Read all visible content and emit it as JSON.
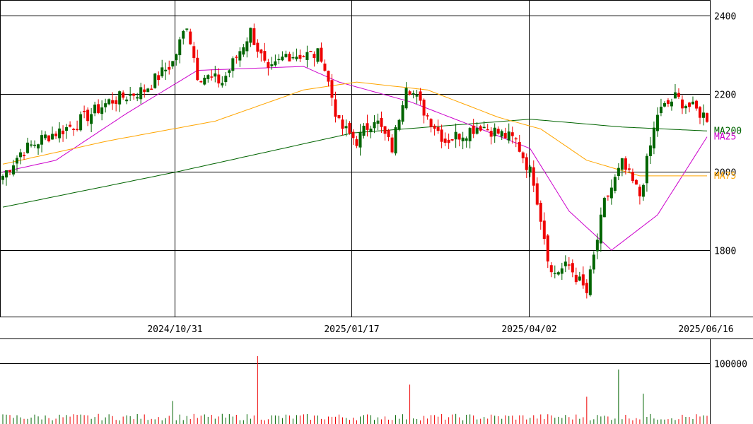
{
  "chart_data": [
    {
      "type": "candlestick",
      "title": "",
      "y_ticks": [
        1800,
        2000,
        2200,
        2400
      ],
      "y_tick_labels": [
        "1800",
        "2000",
        "2200",
        "2400"
      ],
      "ylim": [
        1630,
        2440
      ],
      "x_tick_labels": [
        "2024/10/31",
        "2025/01/17",
        "2025/04/02",
        "2025/06/16"
      ],
      "x_tick_index": [
        49,
        99,
        149,
        199
      ],
      "n_points": 200,
      "grid": true,
      "colors": {
        "up": "#006400",
        "down": "#ee0000",
        "ma25": "#cc00cc",
        "ma75": "#ffa500",
        "ma200": "#006400"
      },
      "series": [
        {
          "name": "MA200",
          "anchors": [
            [
              0,
              1910
            ],
            [
              49,
              2000
            ],
            [
              99,
              2100
            ],
            [
              149,
              2135
            ],
            [
              175,
              2115
            ],
            [
              199,
              2105
            ]
          ]
        },
        {
          "name": "MA25",
          "anchors": [
            [
              0,
              2000
            ],
            [
              15,
              2030
            ],
            [
              35,
              2150
            ],
            [
              55,
              2260
            ],
            [
              85,
              2270
            ],
            [
              95,
              2230
            ],
            [
              115,
              2180
            ],
            [
              135,
              2110
            ],
            [
              149,
              2060
            ],
            [
              160,
              1900
            ],
            [
              172,
              1800
            ],
            [
              185,
              1890
            ],
            [
              199,
              2090
            ]
          ]
        },
        {
          "name": "MA75",
          "anchors": [
            [
              0,
              2020
            ],
            [
              30,
              2080
            ],
            [
              60,
              2130
            ],
            [
              85,
              2210
            ],
            [
              100,
              2230
            ],
            [
              120,
              2210
            ],
            [
              140,
              2140
            ],
            [
              152,
              2110
            ],
            [
              165,
              2030
            ],
            [
              180,
              1990
            ],
            [
              199,
              1990
            ]
          ]
        }
      ],
      "price_anchors": [
        [
          0,
          1990
        ],
        [
          5,
          2050
        ],
        [
          12,
          2090
        ],
        [
          20,
          2120
        ],
        [
          30,
          2180
        ],
        [
          40,
          2210
        ],
        [
          48,
          2280
        ],
        [
          52,
          2380
        ],
        [
          55,
          2250
        ],
        [
          62,
          2230
        ],
        [
          70,
          2360
        ],
        [
          75,
          2250
        ],
        [
          80,
          2300
        ],
        [
          90,
          2300
        ],
        [
          95,
          2120
        ],
        [
          100,
          2080
        ],
        [
          105,
          2140
        ],
        [
          110,
          2060
        ],
        [
          114,
          2230
        ],
        [
          118,
          2170
        ],
        [
          125,
          2080
        ],
        [
          135,
          2120
        ],
        [
          145,
          2080
        ],
        [
          150,
          1980
        ],
        [
          155,
          1740
        ],
        [
          160,
          1760
        ],
        [
          165,
          1690
        ],
        [
          170,
          1920
        ],
        [
          175,
          2020
        ],
        [
          180,
          1940
        ],
        [
          185,
          2150
        ],
        [
          190,
          2190
        ],
        [
          199,
          2140
        ]
      ],
      "volume": {
        "y_ticks": [
          100000
        ],
        "y_tick_labels": [
          "100000"
        ],
        "ylim": [
          0,
          140000
        ],
        "base": 12000,
        "spikes": [
          [
            48,
            38000
          ],
          [
            72,
            112000
          ],
          [
            115,
            65000
          ],
          [
            165,
            45000
          ],
          [
            174,
            90000
          ],
          [
            181,
            50000
          ]
        ]
      }
    }
  ]
}
